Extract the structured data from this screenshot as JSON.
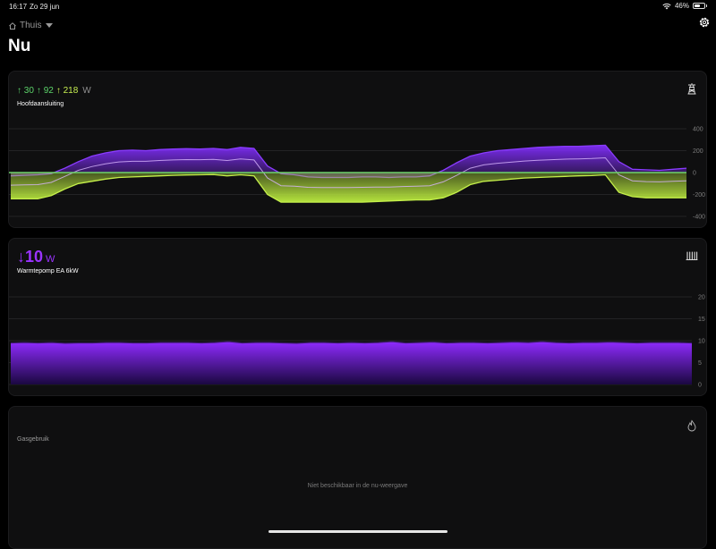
{
  "status_bar": {
    "time": "16:17",
    "date": "Zo 29 jun",
    "battery": "46%",
    "battery_level": 0.46
  },
  "header": {
    "location": "Thuis",
    "title": "Nu"
  },
  "main_connection": {
    "readings": {
      "r1": "30",
      "r2": "92",
      "r3": "218",
      "unit": "W"
    },
    "label": "Hoofdaansluiting",
    "icon": "power-pylon-icon",
    "chart_data": {
      "type": "area",
      "ylim": [
        -400,
        400
      ],
      "yticks": [
        400,
        200,
        0,
        -200,
        -400
      ],
      "x": [
        0,
        2,
        4,
        6,
        8,
        10,
        12,
        14,
        16,
        18,
        20,
        22,
        24,
        26,
        28,
        30,
        32,
        34,
        36,
        38,
        40,
        42,
        44,
        46,
        48,
        50,
        52,
        54,
        56,
        58,
        60,
        62,
        64,
        66,
        68,
        70,
        72,
        74,
        76,
        78,
        80,
        82,
        84,
        86,
        88,
        90,
        92,
        94,
        96,
        98,
        100
      ],
      "series": [
        {
          "color": "#7b2cf0",
          "values": [
            -30,
            -25,
            -20,
            -10,
            40,
            100,
            150,
            180,
            200,
            205,
            200,
            210,
            215,
            218,
            215,
            220,
            210,
            230,
            220,
            60,
            -10,
            -20,
            -40,
            -45,
            -45,
            -45,
            -40,
            -40,
            -45,
            -40,
            -40,
            -30,
            20,
            90,
            150,
            180,
            200,
            210,
            220,
            230,
            235,
            240,
            240,
            245,
            250,
            100,
            30,
            25,
            20,
            30,
            40
          ]
        },
        {
          "color": "#b5e33d",
          "values": [
            -240,
            -240,
            -240,
            -210,
            -150,
            -100,
            -80,
            -60,
            -45,
            -40,
            -35,
            -30,
            -25,
            -22,
            -20,
            -18,
            -30,
            -20,
            -30,
            -200,
            -270,
            -270,
            -270,
            -270,
            -270,
            -270,
            -270,
            -265,
            -260,
            -255,
            -250,
            -250,
            -230,
            -180,
            -110,
            -80,
            -70,
            -60,
            -50,
            -45,
            -40,
            -35,
            -30,
            -28,
            -20,
            -180,
            -220,
            -230,
            -230,
            -230,
            -230
          ]
        }
      ]
    }
  },
  "heat_pump": {
    "reading": "10",
    "unit": "W",
    "label": "Warmtepomp EA 6kW",
    "icon": "radiator-icon",
    "chart_data": {
      "type": "area",
      "ylim": [
        0,
        20
      ],
      "yticks": [
        20,
        15,
        10,
        5,
        0
      ],
      "x": [
        0,
        2,
        4,
        6,
        8,
        10,
        12,
        14,
        16,
        18,
        20,
        22,
        24,
        26,
        28,
        30,
        32,
        34,
        36,
        38,
        40,
        42,
        44,
        46,
        48,
        50,
        52,
        54,
        56,
        58,
        60,
        62,
        64,
        66,
        68,
        70,
        72,
        74,
        76,
        78,
        80,
        82,
        84,
        86,
        88,
        90,
        92,
        94,
        96,
        98,
        100
      ],
      "series": [
        {
          "color": "#8f2bff",
          "values": [
            9.5,
            9.6,
            9.5,
            9.6,
            9.4,
            9.5,
            9.5,
            9.6,
            9.6,
            9.5,
            9.5,
            9.6,
            9.6,
            9.6,
            9.5,
            9.6,
            9.8,
            9.5,
            9.6,
            9.6,
            9.5,
            9.4,
            9.6,
            9.6,
            9.5,
            9.6,
            9.5,
            9.6,
            9.8,
            9.5,
            9.6,
            9.7,
            9.5,
            9.6,
            9.6,
            9.5,
            9.6,
            9.7,
            9.6,
            9.8,
            9.6,
            9.5,
            9.6,
            9.6,
            9.7,
            9.6,
            9.5,
            9.6,
            9.6,
            9.6,
            9.5
          ]
        }
      ]
    }
  },
  "gas": {
    "label": "Gasgebruik",
    "icon": "flame-icon",
    "message": "Niet beschikbaar in de nu-weergave"
  }
}
